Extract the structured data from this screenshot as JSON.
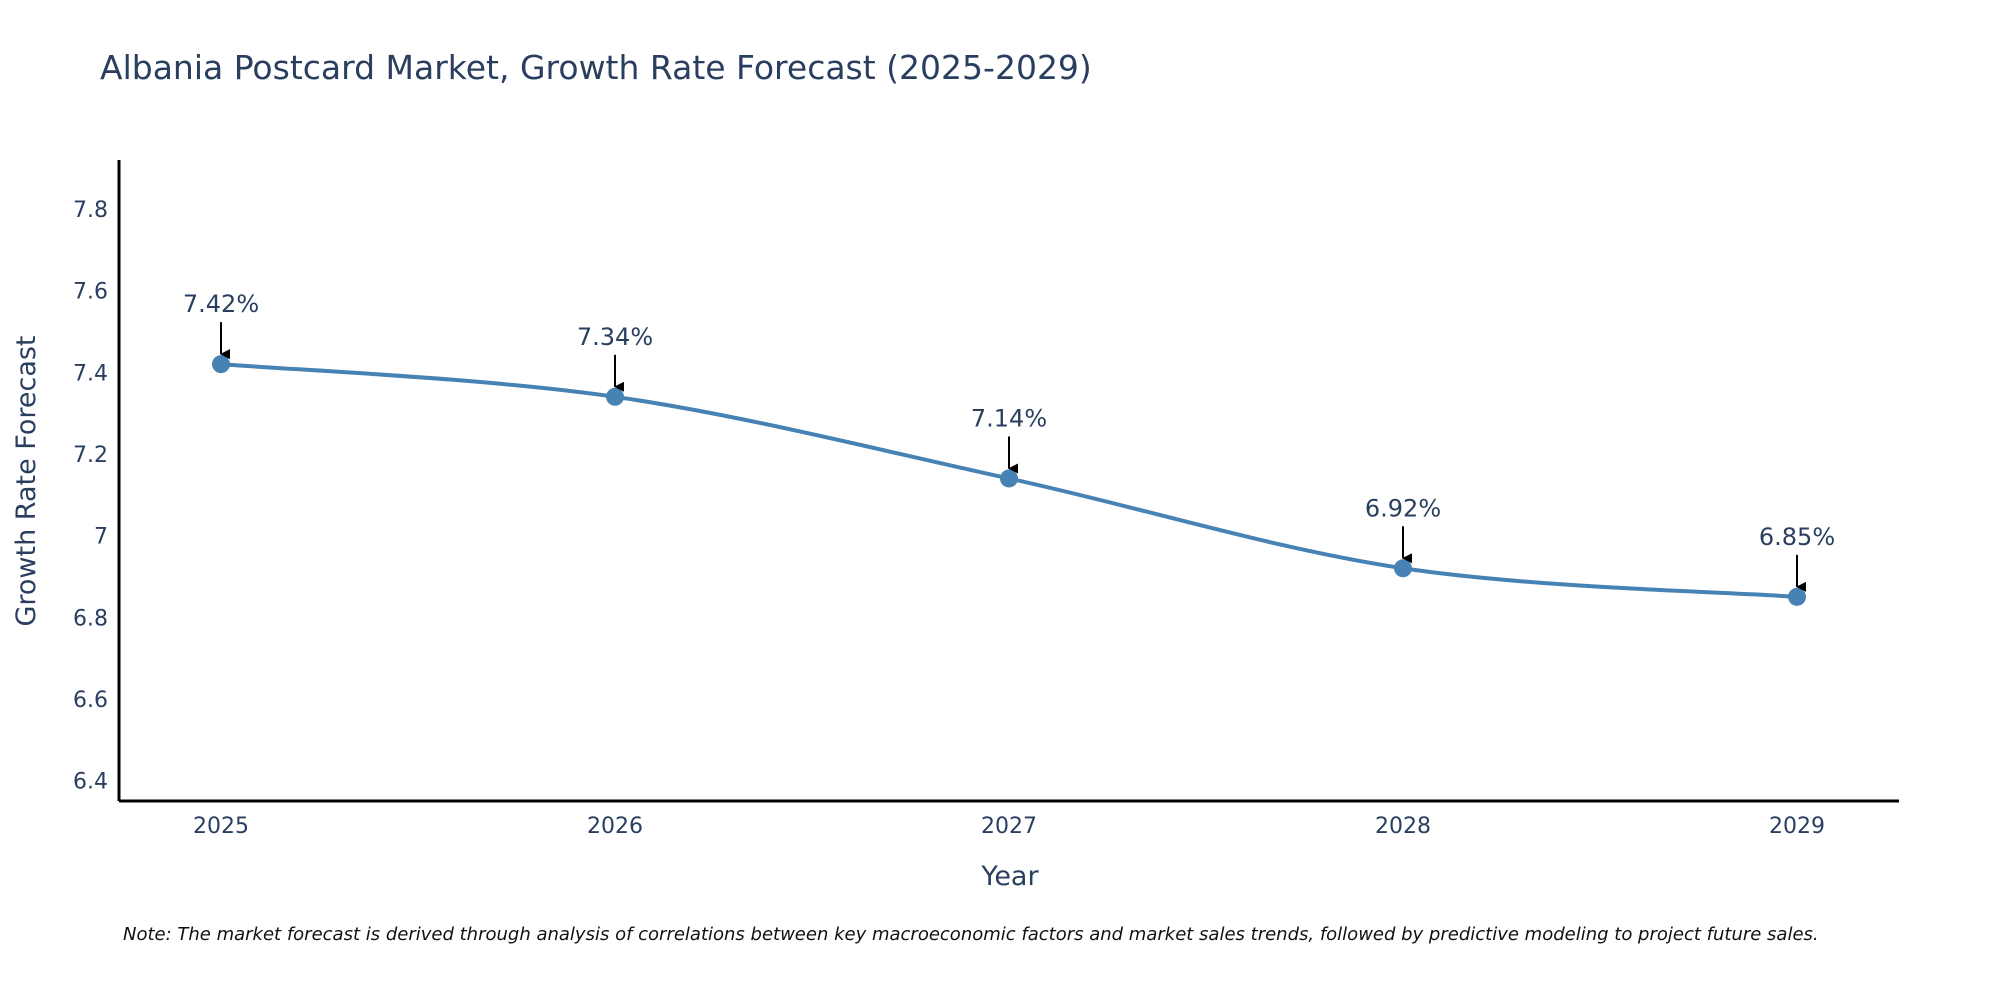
{
  "chart_data": {
    "type": "line",
    "title": "Albania Postcard Market, Growth Rate Forecast (2025-2029)",
    "xlabel": "Year",
    "ylabel": "Growth Rate Forecast",
    "categories": [
      "2025",
      "2026",
      "2027",
      "2028",
      "2029"
    ],
    "series": [
      {
        "name": "Growth Rate Forecast",
        "values": [
          7.42,
          7.34,
          7.14,
          6.92,
          6.85
        ]
      }
    ],
    "data_labels": [
      "7.42%",
      "7.34%",
      "7.14%",
      "6.92%",
      "6.85%"
    ],
    "ylim": [
      6.35,
      7.92
    ],
    "yticks": [
      6.4,
      6.6,
      6.8,
      7.0,
      7.2,
      7.4,
      7.6,
      7.8
    ],
    "ytick_labels": [
      "6.4",
      "6.6",
      "6.8",
      "7",
      "7.2",
      "7.4",
      "7.6",
      "7.8"
    ],
    "grid": false,
    "line_color": "#4682b4",
    "note": "Note: The market forecast is derived through analysis of correlations between key macroeconomic factors and market sales trends, followed by predictive modeling to project future sales."
  }
}
